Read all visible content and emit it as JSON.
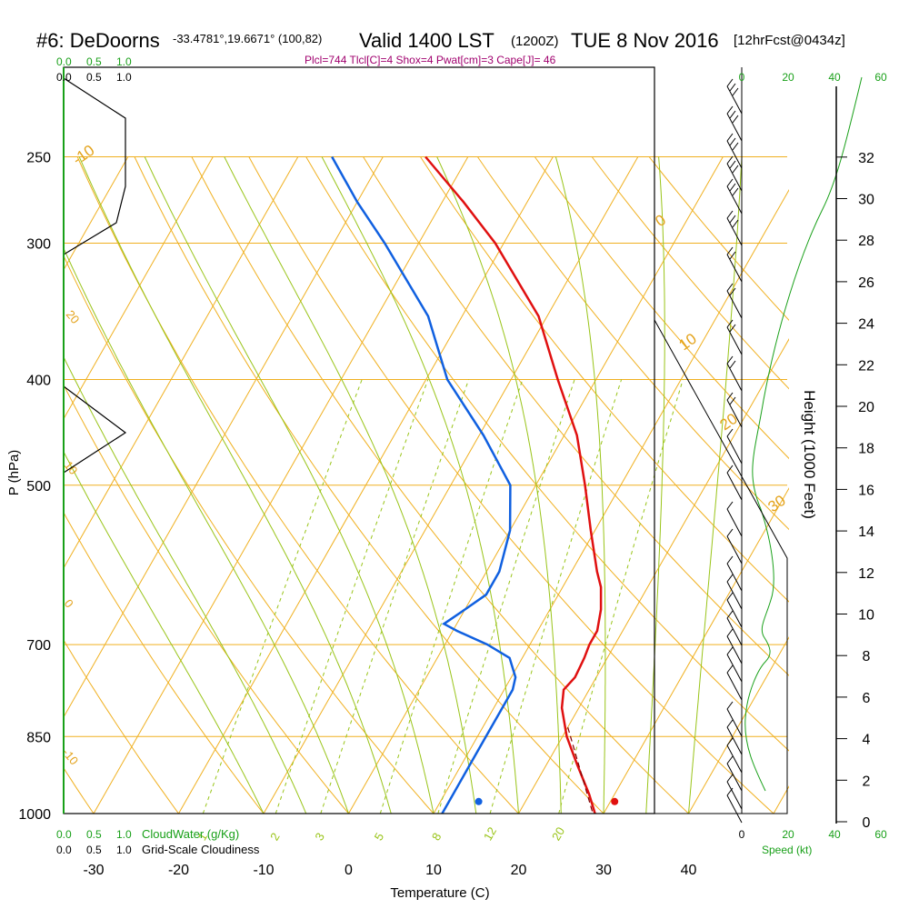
{
  "header": {
    "station": "#6: DeDoorns",
    "coords": "-33.4781°,19.6671° (100,82)",
    "valid": "Valid 1400 LST",
    "utc": "(1200Z)",
    "date": "TUE 8 Nov 2016",
    "forecast": "[12hrFcst@0434z]",
    "params": "Plcl=744 Tlcl[C]=4 Shox=4 Pwat[cm]=3 Cape[J]= 46"
  },
  "cloud_scale": {
    "top_green": [
      "0.0",
      "0.5",
      "1.0"
    ],
    "top_black": [
      "0.0",
      "0.5",
      "1.0"
    ],
    "bottom_green": [
      "0.0",
      "0.5",
      "1.0"
    ],
    "bottom_black": [
      "0.0",
      "0.5",
      "1.0"
    ],
    "cloudwater_label": "CloudWater (g/Kg)",
    "cloudiness_label": "Grid-Scale Cloudiness"
  },
  "wind_scale": {
    "top": [
      "0",
      "20",
      "40",
      "60"
    ],
    "bottom": [
      "0",
      "20",
      "40",
      "60"
    ],
    "label": "Speed (kt)"
  },
  "colors": {
    "temperature": "#e01010",
    "dewpoint": "#1060e0",
    "isotherm": "#f0b020",
    "mixing": "#99c418",
    "cloud": "#19a019",
    "params": "#a0006e"
  },
  "chart_data": {
    "type": "line",
    "title": "Skew-T log-P sounding",
    "xlabel": "Temperature (C)",
    "ylabel": "P (hPa)",
    "y2label": "Height (1000 Feet)",
    "x_ticks": [
      "-30",
      "-20",
      "-10",
      "0",
      "10",
      "20",
      "30",
      "40"
    ],
    "p_ticks": [
      "250",
      "300",
      "400",
      "500",
      "700",
      "850",
      "1000"
    ],
    "height_ticks": [
      "0",
      "2",
      "4",
      "6",
      "8",
      "10",
      "12",
      "14",
      "16",
      "18",
      "20",
      "22",
      "24",
      "26",
      "28",
      "30",
      "32"
    ],
    "isotherm_labels": [
      "-10",
      "0",
      "10",
      "20",
      "30",
      "20",
      "10",
      "0",
      "-10",
      "-20",
      "-30"
    ],
    "mixing_labels": [
      "1",
      "2",
      "3",
      "5",
      "8",
      "12",
      "20"
    ],
    "series": [
      {
        "name": "Temperature",
        "points": [
          [
            1000,
            29.0
          ],
          [
            960,
            27.0
          ],
          [
            900,
            23.5
          ],
          [
            850,
            20.5
          ],
          [
            800,
            18.0
          ],
          [
            770,
            17.0
          ],
          [
            750,
            17.5
          ],
          [
            720,
            17.3
          ],
          [
            700,
            17.0
          ],
          [
            680,
            17.0
          ],
          [
            650,
            16.0
          ],
          [
            620,
            14.5
          ],
          [
            600,
            13.0
          ],
          [
            550,
            9.5
          ],
          [
            500,
            5.8
          ],
          [
            450,
            1.5
          ],
          [
            400,
            -4.5
          ],
          [
            350,
            -11.0
          ],
          [
            300,
            -21.0
          ],
          [
            275,
            -27.5
          ],
          [
            250,
            -35.0
          ]
        ]
      },
      {
        "name": "Dewpoint",
        "points": [
          [
            1000,
            11.0
          ],
          [
            980,
            11.0
          ],
          [
            900,
            11.0
          ],
          [
            850,
            11.0
          ],
          [
            800,
            11.0
          ],
          [
            770,
            11.0
          ],
          [
            750,
            10.5
          ],
          [
            720,
            8.5
          ],
          [
            700,
            5.0
          ],
          [
            680,
            0.5
          ],
          [
            670,
            -1.5
          ],
          [
            650,
            0.0
          ],
          [
            630,
            1.5
          ],
          [
            600,
            1.5
          ],
          [
            550,
            0.0
          ],
          [
            500,
            -3.0
          ],
          [
            450,
            -9.5
          ],
          [
            400,
            -17.5
          ],
          [
            350,
            -24.0
          ],
          [
            300,
            -34.0
          ],
          [
            275,
            -40.0
          ],
          [
            250,
            -46.0
          ]
        ]
      },
      {
        "name": "Parcel",
        "points": [
          [
            995,
            28.5
          ],
          [
            830,
            19.8
          ]
        ]
      }
    ],
    "surface": {
      "temperature": 30.5,
      "dewpoint": 14.5
    }
  }
}
